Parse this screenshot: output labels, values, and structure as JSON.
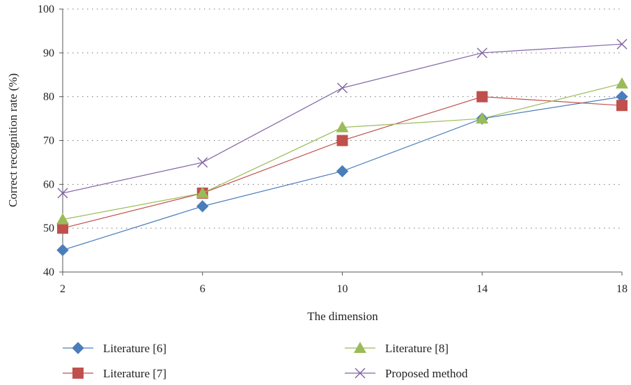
{
  "chart_data": {
    "type": "line",
    "title": "",
    "xlabel": "The dimension",
    "ylabel": "Correct recognition rate (%)",
    "x": [
      2,
      6,
      10,
      14,
      18
    ],
    "xticks": [
      "2",
      "6",
      "10",
      "14",
      "18"
    ],
    "yticks": [
      "40",
      "50",
      "60",
      "70",
      "80",
      "90",
      "100"
    ],
    "ylim": [
      40,
      100
    ],
    "grid": "horizontal-dotted",
    "legend_position": "bottom",
    "series": [
      {
        "name": "Literature [6]",
        "marker": "diamond",
        "color": "#4a7ebb",
        "values": [
          45,
          55,
          63,
          75,
          80
        ]
      },
      {
        "name": "Literature [7]",
        "marker": "square",
        "color": "#c0504d",
        "values": [
          50,
          58,
          70,
          80,
          78
        ]
      },
      {
        "name": "Literature [8]",
        "marker": "triangle",
        "color": "#9bbb59",
        "values": [
          52,
          58,
          73,
          75,
          83
        ]
      },
      {
        "name": "Proposed method",
        "marker": "x",
        "color": "#8064a2",
        "values": [
          58,
          65,
          82,
          90,
          92
        ]
      }
    ]
  }
}
